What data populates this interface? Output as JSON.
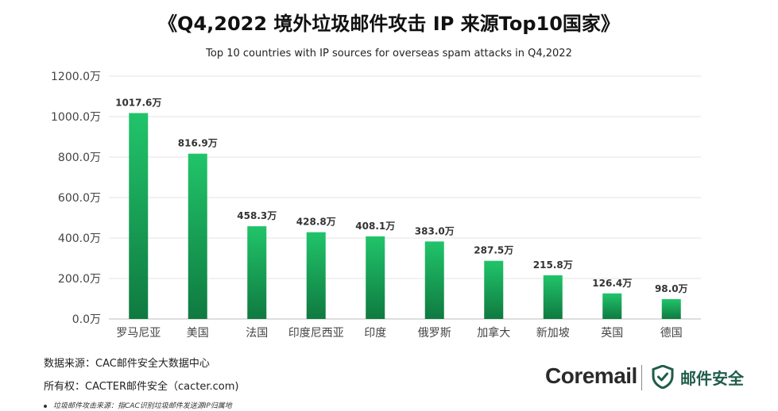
{
  "title": "《Q4,2022 境外垃圾邮件攻击 IP 来源Top10国家》",
  "subtitle": "Top 10 countries with IP sources for overseas spam attacks in Q4,2022",
  "chart_data": {
    "type": "bar",
    "categories": [
      "罗马尼亚",
      "美国",
      "法国",
      "印度尼西亚",
      "印度",
      "俄罗斯",
      "加拿大",
      "新加坡",
      "英国",
      "德国"
    ],
    "values": [
      1017.6,
      816.9,
      458.3,
      428.8,
      408.1,
      383.0,
      287.5,
      215.8,
      126.4,
      98.0
    ],
    "value_labels": [
      "1017.6万",
      "816.9万",
      "458.3万",
      "428.8万",
      "408.1万",
      "383.0万",
      "287.5万",
      "215.8万",
      "126.4万",
      "98.0万"
    ],
    "y_ticks": [
      0,
      200,
      400,
      600,
      800,
      1000,
      1200
    ],
    "y_tick_labels": [
      "0.0万",
      "200.0万",
      "400.0万",
      "600.0万",
      "800.0万",
      "1000.0万",
      "1200.0万"
    ],
    "ylim": [
      0,
      1200
    ],
    "grid": true,
    "bar_color_top": "#21c46a",
    "bar_color_bottom": "#0f7a40"
  },
  "footer": {
    "source": "数据来源：CAC邮件安全大数据中心",
    "copyright": "所有权：CACTER邮件安全（cacter.com)",
    "note": "垃圾邮件攻击来源：指CAC识别垃圾邮件发送源IP归属地"
  },
  "branding": {
    "coremail": "Coremail",
    "product": "邮件安全",
    "product_icon": "shield-check-icon",
    "product_color": "#1f5c4a"
  }
}
